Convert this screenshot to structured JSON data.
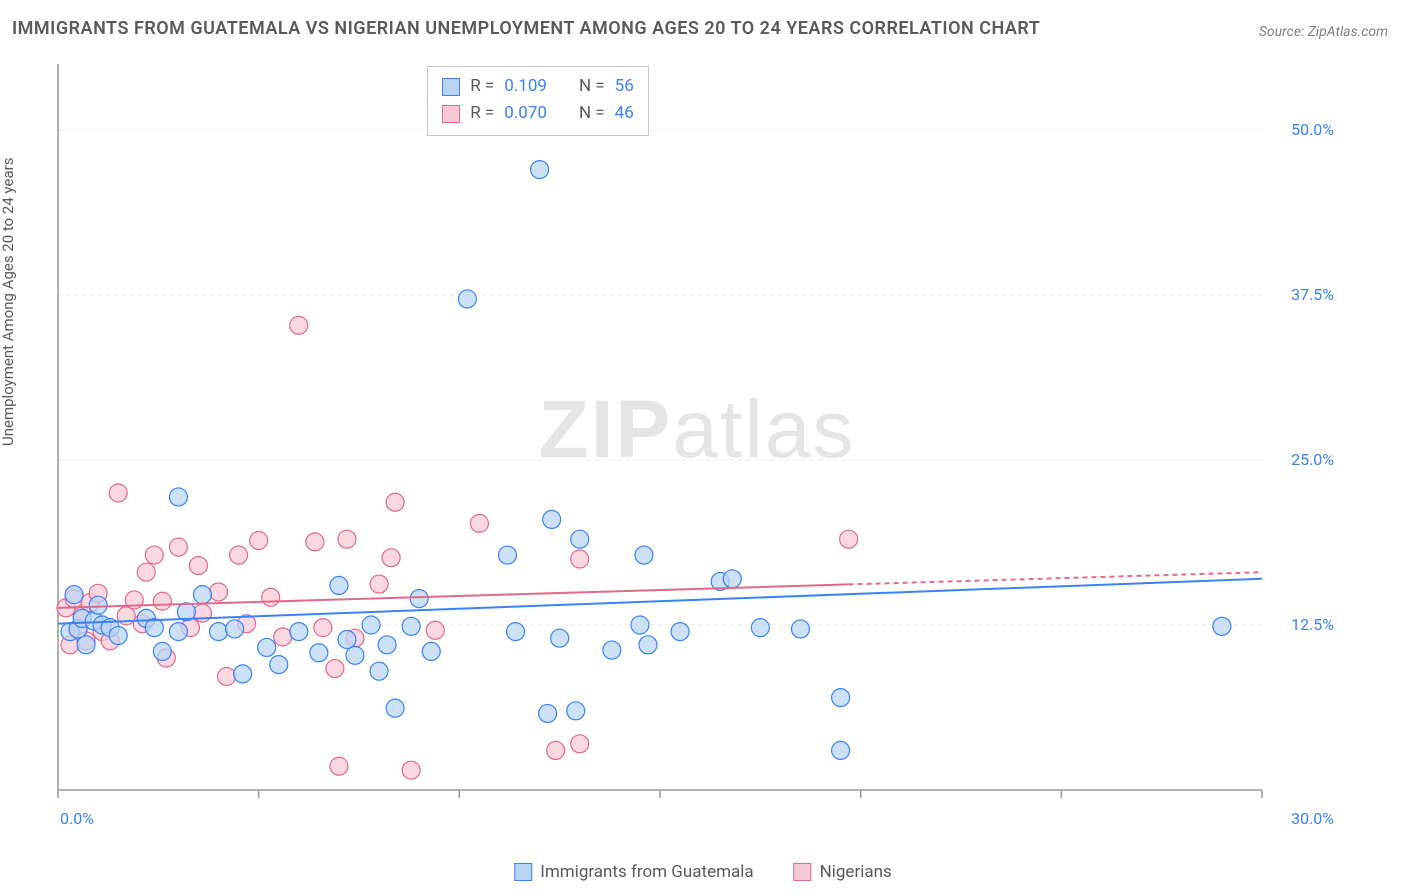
{
  "title": "IMMIGRANTS FROM GUATEMALA VS NIGERIAN UNEMPLOYMENT AMONG AGES 20 TO 24 YEARS CORRELATION CHART",
  "source": "Source: ZipAtlas.com",
  "yaxis_label": "Unemployment Among Ages 20 to 24 years",
  "watermark_a": "ZIP",
  "watermark_b": "atlas",
  "chart": {
    "type": "scatter",
    "xlim": [
      0,
      30
    ],
    "ylim": [
      0,
      55
    ],
    "xtick_labels": {
      "min": "0.0%",
      "max": "30.0%"
    },
    "ytick_labels": [
      "12.5%",
      "25.0%",
      "37.5%",
      "50.0%"
    ],
    "ytick_values": [
      12.5,
      25.0,
      37.5,
      50.0
    ],
    "xtick_values": [
      0,
      5,
      10,
      15,
      20,
      25,
      30
    ],
    "grid_color": "#e8e8e8",
    "axis_color": "#9a9a9a",
    "background_color": "#ffffff",
    "marker_radius": 9,
    "marker_stroke_width": 1.2,
    "trend_line_width": 2,
    "series": [
      {
        "name": "Immigrants from Guatemala",
        "fill": "#b9d4f3",
        "stroke": "#3b82f6",
        "r_value": "0.109",
        "n_value": "56",
        "trend": {
          "y_at_x0": 12.6,
          "y_at_x30": 16.0
        },
        "points": [
          [
            0.3,
            12.0
          ],
          [
            0.4,
            14.8
          ],
          [
            0.5,
            12.2
          ],
          [
            0.6,
            13.0
          ],
          [
            0.7,
            11.0
          ],
          [
            0.9,
            12.8
          ],
          [
            1.0,
            14.0
          ],
          [
            1.1,
            12.5
          ],
          [
            1.3,
            12.3
          ],
          [
            1.5,
            11.7
          ],
          [
            2.2,
            13.0
          ],
          [
            2.4,
            12.3
          ],
          [
            2.6,
            10.5
          ],
          [
            3.0,
            22.2
          ],
          [
            3.0,
            12.0
          ],
          [
            3.2,
            13.5
          ],
          [
            3.6,
            14.8
          ],
          [
            4.0,
            12.0
          ],
          [
            4.4,
            12.2
          ],
          [
            4.6,
            8.8
          ],
          [
            5.2,
            10.8
          ],
          [
            5.5,
            9.5
          ],
          [
            6.0,
            12.0
          ],
          [
            6.5,
            10.4
          ],
          [
            7.0,
            15.5
          ],
          [
            7.2,
            11.4
          ],
          [
            7.4,
            10.2
          ],
          [
            7.8,
            12.5
          ],
          [
            8.0,
            9.0
          ],
          [
            8.2,
            11.0
          ],
          [
            8.4,
            6.2
          ],
          [
            8.8,
            12.4
          ],
          [
            9.0,
            14.5
          ],
          [
            9.3,
            10.5
          ],
          [
            10.2,
            37.2
          ],
          [
            10.4,
            53.2
          ],
          [
            11.2,
            17.8
          ],
          [
            11.4,
            12.0
          ],
          [
            12.0,
            47.0
          ],
          [
            12.2,
            5.8
          ],
          [
            12.3,
            20.5
          ],
          [
            12.5,
            11.5
          ],
          [
            12.9,
            6.0
          ],
          [
            13.0,
            19.0
          ],
          [
            13.8,
            10.6
          ],
          [
            14.5,
            12.5
          ],
          [
            14.6,
            17.8
          ],
          [
            14.7,
            11.0
          ],
          [
            15.5,
            12.0
          ],
          [
            16.5,
            15.8
          ],
          [
            16.8,
            16.0
          ],
          [
            17.5,
            12.3
          ],
          [
            18.5,
            12.2
          ],
          [
            19.5,
            7.0
          ],
          [
            19.5,
            3.0
          ],
          [
            29.0,
            12.4
          ]
        ]
      },
      {
        "name": "Nigerians",
        "fill": "#f6c9d6",
        "stroke": "#e06a8a",
        "r_value": "0.070",
        "n_value": "46",
        "trend": {
          "y_at_x0": 13.8,
          "y_at_x30": 16.5
        },
        "trend_extent_x": 19.7,
        "points": [
          [
            0.2,
            13.8
          ],
          [
            0.3,
            11.0
          ],
          [
            0.4,
            14.5
          ],
          [
            0.5,
            12.1
          ],
          [
            0.6,
            13.2
          ],
          [
            0.7,
            11.3
          ],
          [
            0.8,
            14.2
          ],
          [
            1.0,
            14.9
          ],
          [
            1.1,
            12.0
          ],
          [
            1.3,
            11.3
          ],
          [
            1.5,
            22.5
          ],
          [
            1.7,
            13.2
          ],
          [
            1.9,
            14.4
          ],
          [
            2.1,
            12.6
          ],
          [
            2.2,
            16.5
          ],
          [
            2.4,
            17.8
          ],
          [
            2.6,
            14.3
          ],
          [
            2.7,
            10.0
          ],
          [
            3.0,
            18.4
          ],
          [
            3.3,
            12.3
          ],
          [
            3.5,
            17.0
          ],
          [
            3.6,
            13.4
          ],
          [
            4.0,
            15.0
          ],
          [
            4.2,
            8.6
          ],
          [
            4.5,
            17.8
          ],
          [
            4.7,
            12.6
          ],
          [
            5.0,
            18.9
          ],
          [
            5.3,
            14.6
          ],
          [
            5.6,
            11.6
          ],
          [
            6.0,
            35.2
          ],
          [
            6.4,
            18.8
          ],
          [
            6.6,
            12.3
          ],
          [
            6.9,
            9.2
          ],
          [
            7.0,
            1.8
          ],
          [
            7.2,
            19.0
          ],
          [
            7.4,
            11.5
          ],
          [
            8.0,
            15.6
          ],
          [
            8.3,
            17.6
          ],
          [
            8.4,
            21.8
          ],
          [
            8.8,
            1.5
          ],
          [
            9.4,
            12.1
          ],
          [
            10.5,
            20.2
          ],
          [
            12.4,
            3.0
          ],
          [
            13.0,
            17.5
          ],
          [
            13.0,
            3.5
          ],
          [
            19.7,
            19.0
          ]
        ]
      }
    ]
  },
  "legend": {
    "series1_label": "Immigrants from Guatemala",
    "series2_label": "Nigerians"
  },
  "statbox": {
    "r_label": "R  =",
    "n_label": "N  ="
  }
}
